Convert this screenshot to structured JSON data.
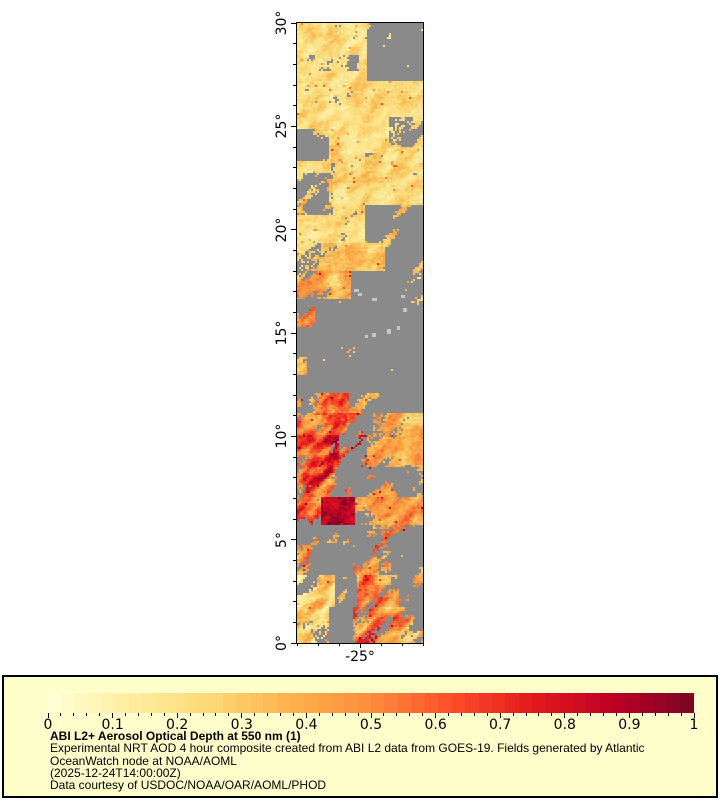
{
  "caption": {
    "title": "ABI L2+ Aerosol Optical Depth at 550 nm (1)",
    "line1": "Experimental NRT AOD 4 hour composite created from ABI L2 data from GOES-19. Fields generated by Atlantic",
    "line2": "OceanWatch node at NOAA/AOML",
    "line3": "(2025-12-24T14:00:00Z)",
    "line4": "Data courtesy of USDOC/NOAA/OAR/AOML/PHOD"
  },
  "chart_data": {
    "type": "heatmap",
    "title": "ABI L2+ Aerosol Optical Depth at 550 nm (1)",
    "subtitle": "Experimental NRT AOD 4 hour composite created from ABI L2 data from GOES-19. Fields generated by Atlantic OceanWatch node at NOAA/AOML",
    "timestamp": "(2025-12-24T14:00:00Z)",
    "credit": "Data courtesy of USDOC/NOAA/OAR/AOML/PHOD",
    "x_range": [
      -28,
      -22
    ],
    "y_range": [
      0,
      30
    ],
    "x_ticks": [
      {
        "v": -25,
        "label": "-25°"
      }
    ],
    "x_minor_step": 1,
    "y_ticks": [
      {
        "v": 30,
        "label": "30°"
      },
      {
        "v": 25,
        "label": "25°"
      },
      {
        "v": 20,
        "label": "20°"
      },
      {
        "v": 15,
        "label": "15°"
      },
      {
        "v": 10,
        "label": "10°"
      },
      {
        "v": 5,
        "label": "5°"
      },
      {
        "v": 0,
        "label": "0°"
      }
    ],
    "y_minor_step": 1,
    "no_data_color": "#8a8a8a",
    "land_color": "#c6c6c6",
    "colorbar": {
      "min": 0,
      "max": 1,
      "tick_labels": [
        "0",
        "0.1",
        "0.2",
        "0.3",
        "0.4",
        "0.5",
        "0.6",
        "0.7",
        "0.8",
        "0.9",
        "1"
      ],
      "minor_divisions": 50,
      "blocks": 48,
      "stops": [
        [
          0.0,
          "#ffffd9"
        ],
        [
          0.125,
          "#ffeda0"
        ],
        [
          0.25,
          "#fed976"
        ],
        [
          0.375,
          "#feb24c"
        ],
        [
          0.5,
          "#fd8d3c"
        ],
        [
          0.625,
          "#fc4e2a"
        ],
        [
          0.75,
          "#e31a1c"
        ],
        [
          0.875,
          "#bd0026"
        ],
        [
          1.0,
          "#7a0522"
        ]
      ]
    },
    "region_format": "[latMin, latMax, lonMin, lonMax, meanAOD, aodVariation, dataCoverage]",
    "regions": [
      [
        27.2,
        30.0,
        -24.7,
        -22.0,
        0.25,
        0.1,
        0.06
      ],
      [
        29.2,
        30.0,
        -26.2,
        -24.7,
        0.22,
        0.1,
        0.55
      ],
      [
        27.7,
        28.5,
        -27.7,
        -25.0,
        0.22,
        0.08,
        0.45
      ],
      [
        23.3,
        24.9,
        -28.0,
        -26.5,
        0.26,
        0.1,
        0.35
      ],
      [
        20.7,
        22.7,
        -28.0,
        -26.3,
        0.28,
        0.12,
        0.4
      ],
      [
        22.3,
        23.7,
        -26.4,
        -23.9,
        0.28,
        0.1,
        0.55
      ],
      [
        24.0,
        25.5,
        -23.6,
        -22.0,
        0.26,
        0.1,
        0.55
      ],
      [
        19.4,
        21.2,
        -24.8,
        -22.0,
        0.3,
        0.1,
        0.25
      ],
      [
        19.4,
        30.0,
        -28.0,
        -22.0,
        0.23,
        0.1,
        0.96
      ],
      [
        18.0,
        19.4,
        -28.0,
        -23.8,
        0.3,
        0.12,
        0.85
      ],
      [
        18.0,
        19.4,
        -23.8,
        -22.0,
        0.32,
        0.1,
        0.25
      ],
      [
        16.6,
        18.0,
        -28.0,
        -25.4,
        0.36,
        0.15,
        0.75
      ],
      [
        16.6,
        18.0,
        -25.4,
        -22.0,
        0.3,
        0.12,
        0.1
      ],
      [
        15.3,
        16.6,
        -28.0,
        -27.1,
        0.46,
        0.2,
        0.6
      ],
      [
        15.3,
        16.6,
        -27.1,
        -22.0,
        0.3,
        0.1,
        0.06
      ],
      [
        13.0,
        13.8,
        -28.0,
        -27.5,
        0.35,
        0.12,
        0.45
      ],
      [
        12.1,
        15.3,
        -28.0,
        -22.0,
        0.3,
        0.1,
        0.03
      ],
      [
        11.1,
        12.1,
        -28.0,
        -25.5,
        0.52,
        0.22,
        0.55
      ],
      [
        11.1,
        12.1,
        -25.5,
        -22.0,
        0.36,
        0.1,
        0.3
      ],
      [
        10.1,
        11.1,
        -28.0,
        -25.6,
        0.62,
        0.25,
        0.8
      ],
      [
        10.1,
        11.1,
        -25.6,
        -24.4,
        0.46,
        0.2,
        0.45
      ],
      [
        10.1,
        11.1,
        -24.4,
        -22.0,
        0.38,
        0.12,
        0.85
      ],
      [
        8.5,
        10.1,
        -28.0,
        -26.0,
        0.7,
        0.25,
        0.85
      ],
      [
        8.5,
        10.1,
        -26.0,
        -24.7,
        0.55,
        0.25,
        0.5
      ],
      [
        8.5,
        10.1,
        -24.7,
        -22.0,
        0.4,
        0.12,
        0.8
      ],
      [
        7.1,
        8.5,
        -28.0,
        -26.1,
        0.62,
        0.28,
        0.6
      ],
      [
        7.1,
        8.5,
        -26.1,
        -24.7,
        0.52,
        0.2,
        0.3
      ],
      [
        7.1,
        8.5,
        -24.7,
        -22.7,
        0.42,
        0.15,
        0.55
      ],
      [
        7.1,
        8.5,
        -22.7,
        -22.0,
        0.4,
        0.1,
        0.3
      ],
      [
        5.7,
        7.1,
        -26.9,
        -25.2,
        0.85,
        0.17,
        0.93
      ],
      [
        5.7,
        7.1,
        -28.0,
        -26.9,
        0.55,
        0.25,
        0.6
      ],
      [
        5.7,
        7.1,
        -25.2,
        -22.0,
        0.46,
        0.15,
        0.7
      ],
      [
        4.7,
        5.7,
        -28.0,
        -26.0,
        0.42,
        0.2,
        0.28
      ],
      [
        4.7,
        5.7,
        -26.0,
        -24.0,
        0.45,
        0.15,
        0.12
      ],
      [
        4.7,
        5.7,
        -24.0,
        -22.0,
        0.46,
        0.15,
        0.4
      ],
      [
        3.3,
        4.7,
        -28.0,
        -27.3,
        0.5,
        0.2,
        0.45
      ],
      [
        3.3,
        4.7,
        -27.3,
        -25.3,
        0.4,
        0.15,
        0.15
      ],
      [
        3.3,
        4.7,
        -25.3,
        -23.5,
        0.52,
        0.2,
        0.5
      ],
      [
        3.3,
        4.7,
        -23.5,
        -22.0,
        0.42,
        0.15,
        0.25
      ],
      [
        1.7,
        3.3,
        -28.0,
        -26.2,
        0.3,
        0.22,
        0.75
      ],
      [
        1.7,
        3.3,
        -26.2,
        -25.1,
        0.42,
        0.15,
        0.3
      ],
      [
        1.7,
        3.3,
        -25.1,
        -23.1,
        0.55,
        0.25,
        0.75
      ],
      [
        1.7,
        3.3,
        -23.1,
        -22.0,
        0.42,
        0.15,
        0.3
      ],
      [
        0.0,
        1.7,
        -28.0,
        -26.5,
        0.26,
        0.2,
        0.85
      ],
      [
        0.0,
        1.7,
        -26.5,
        -25.3,
        0.4,
        0.2,
        0.25
      ],
      [
        0.0,
        1.7,
        -25.3,
        -23.0,
        0.5,
        0.25,
        0.8
      ],
      [
        0.0,
        1.7,
        -23.0,
        -22.0,
        0.44,
        0.2,
        0.5
      ]
    ],
    "islands_format": "[lat, lon, widthPx, heightPx]",
    "islands": [
      [
        17.05,
        -25.15,
        5,
        3
      ],
      [
        16.85,
        -25.0,
        4,
        3
      ],
      [
        16.6,
        -24.3,
        5,
        3
      ],
      [
        16.75,
        -22.95,
        4,
        3
      ],
      [
        16.1,
        -22.85,
        4,
        4
      ],
      [
        15.25,
        -23.15,
        3,
        4
      ],
      [
        15.05,
        -23.6,
        4,
        5
      ],
      [
        14.9,
        -24.35,
        4,
        4
      ],
      [
        14.85,
        -24.7,
        3,
        3
      ]
    ]
  }
}
